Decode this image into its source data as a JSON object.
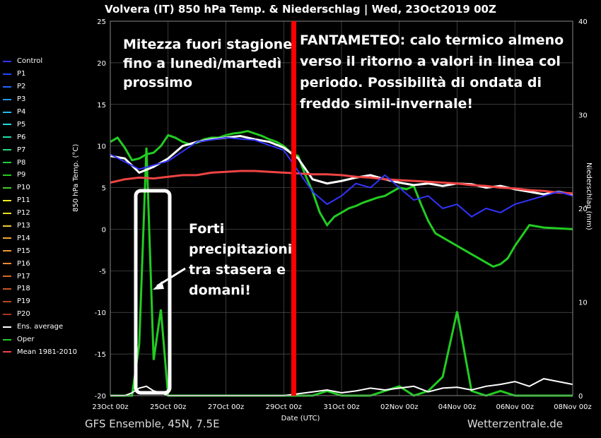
{
  "header": {
    "title": "Volvera  (IT)  850 hPa Temp. & Niederschlag | Wed, 23Oct2019 00Z"
  },
  "footer": {
    "left": "GFS Ensemble, 45N, 7.5E",
    "right": "Wetterzentrale.de"
  },
  "annotations": {
    "left_box": "Mitezza fuori stagione fino a lunedì/martedì prossimo",
    "right_box": "FANTAMETEO: calo termico almeno verso il ritorno a valori in linea col periodo. Possibilità di ondata di freddo simil-invernale!",
    "precip_box": "Forti precipitazioni tra stasera e domani!"
  },
  "colors": {
    "oper": "#22cc22",
    "ens_average": "#ffffff",
    "mean_1981_2010": "#ee4444",
    "control": "#3333ff",
    "marker_line": "#ff0000",
    "grid": "#555555"
  },
  "legend": [
    {
      "label": "Control",
      "color": "#3333ff"
    },
    {
      "label": "P1",
      "color": "#2244ff"
    },
    {
      "label": "P2",
      "color": "#2266ff"
    },
    {
      "label": "P3",
      "color": "#2299ee"
    },
    {
      "label": "P4",
      "color": "#22bbee"
    },
    {
      "label": "P5",
      "color": "#22dddd"
    },
    {
      "label": "P6",
      "color": "#22ddaa"
    },
    {
      "label": "P7",
      "color": "#22dd77"
    },
    {
      "label": "P8",
      "color": "#22cc44"
    },
    {
      "label": "P9",
      "color": "#22cc22"
    },
    {
      "label": "P10",
      "color": "#44cc22"
    },
    {
      "label": "P11",
      "color": "#eeee22"
    },
    {
      "label": "P12",
      "color": "#eedd22"
    },
    {
      "label": "P13",
      "color": "#eecc33"
    },
    {
      "label": "P14",
      "color": "#eeaa33"
    },
    {
      "label": "P15",
      "color": "#ee9933"
    },
    {
      "label": "P16",
      "color": "#ee8833"
    },
    {
      "label": "P17",
      "color": "#dd6622"
    },
    {
      "label": "P18",
      "color": "#cc5522"
    },
    {
      "label": "P19",
      "color": "#bb4422"
    },
    {
      "label": "P20",
      "color": "#aa3322"
    },
    {
      "label": "Ens. average",
      "color": "#ffffff"
    },
    {
      "label": "Oper",
      "color": "#22cc22"
    },
    {
      "label": "Mean 1981-2010",
      "color": "#ee4444"
    }
  ],
  "chart_data": {
    "type": "line",
    "title": "Volvera  (IT)  850 hPa Temp. & Niederschlag | Wed, 23Oct2019 00Z",
    "xlabel": "Date (UTC)",
    "ylabel": "850 hPa Temp. (°C)",
    "y2label": "Niederschlag (mm)",
    "ylim": [
      -20,
      25
    ],
    "y2lim": [
      0,
      40
    ],
    "x_tick_labels": [
      "23Oct 00z",
      "25Oct 00z",
      "27Oct 00z",
      "29Oct 00z",
      "31Oct 00z",
      "02Nov 00z",
      "04Nov 00z",
      "06Nov 00z",
      "08Nov 00z"
    ],
    "y_ticks": [
      25,
      20,
      15,
      10,
      5,
      0,
      -5,
      -10,
      -15,
      -20
    ],
    "y2_ticks": [
      40,
      30,
      20,
      10,
      0
    ],
    "marker_x_days": 6.0,
    "grid": true,
    "temperature_series": [
      {
        "name": "Oper",
        "x_days": [
          0,
          0.25,
          0.5,
          0.75,
          1,
          1.25,
          1.5,
          1.75,
          2,
          2.25,
          2.5,
          2.75,
          3,
          3.25,
          3.5,
          3.75,
          4,
          4.25,
          4.5,
          4.75,
          5,
          5.25,
          5.5,
          5.75,
          6,
          6.25,
          6.5,
          6.75,
          7,
          7.25,
          7.5,
          7.75,
          8,
          8.25,
          8.5,
          8.75,
          9,
          9.25,
          9.5,
          9.75,
          10,
          10.25,
          10.5,
          10.75,
          11,
          11.25,
          11.5,
          11.75,
          12,
          12.25,
          12.5,
          12.75,
          13,
          13.25,
          13.5,
          13.75,
          14,
          14.5,
          15,
          15.5,
          16
        ],
        "values": [
          10.5,
          11,
          9.8,
          8.3,
          8.5,
          9,
          9.2,
          10,
          11.3,
          11,
          10.5,
          10.2,
          10.4,
          10.8,
          11,
          11,
          11.3,
          11.5,
          11.6,
          11.8,
          11.5,
          11.2,
          10.8,
          10.5,
          10.0,
          9.2,
          8.8,
          6.5,
          4.5,
          2.0,
          0.5,
          1.5,
          2.0,
          2.5,
          2.8,
          3.2,
          3.5,
          3.8,
          4.0,
          4.5,
          5.0,
          4.8,
          5.2,
          3.0,
          1.0,
          -0.5,
          -1.0,
          -1.5,
          -2.0,
          -2.5,
          -3.0,
          -3.5,
          -4.0,
          -4.5,
          -4.2,
          -3.5,
          -2.0,
          0.5,
          0.2,
          0.1,
          0.0
        ]
      },
      {
        "name": "Ens. average",
        "x_days": [
          0,
          0.5,
          1,
          1.5,
          2,
          2.5,
          3,
          3.5,
          4,
          4.5,
          5,
          5.5,
          6,
          6.5,
          7,
          7.5,
          8,
          8.5,
          9,
          9.5,
          10,
          10.5,
          11,
          11.5,
          12,
          12.5,
          13,
          13.5,
          14,
          14.5,
          15,
          15.5,
          16
        ],
        "values": [
          8.8,
          8.5,
          6.8,
          7.5,
          8.5,
          10.0,
          10.5,
          10.8,
          11.0,
          11.2,
          10.8,
          10.5,
          9.8,
          8.5,
          6.0,
          5.5,
          5.8,
          6.2,
          6.5,
          6.0,
          5.6,
          5.3,
          5.5,
          5.2,
          5.5,
          5.4,
          5.0,
          5.2,
          4.8,
          4.5,
          4.2,
          4.5,
          4.2
        ]
      },
      {
        "name": "Mean 1981-2010",
        "x_days": [
          0,
          0.5,
          1,
          1.5,
          2,
          2.5,
          3,
          3.5,
          4,
          4.5,
          5,
          5.5,
          6,
          6.5,
          7,
          7.5,
          8,
          8.5,
          9,
          9.5,
          10,
          10.5,
          11,
          11.5,
          12,
          12.5,
          13,
          13.5,
          14,
          14.5,
          15,
          15.5,
          16
        ],
        "values": [
          5.6,
          6.0,
          6.2,
          6.1,
          6.3,
          6.5,
          6.5,
          6.8,
          6.9,
          7.0,
          7.0,
          6.9,
          6.8,
          6.7,
          6.6,
          6.6,
          6.5,
          6.3,
          6.2,
          6.0,
          5.9,
          5.8,
          5.7,
          5.6,
          5.5,
          5.3,
          5.2,
          5.0,
          4.9,
          4.7,
          4.6,
          4.4,
          4.3
        ]
      },
      {
        "name": "Control",
        "x_days": [
          0,
          1,
          2,
          3,
          4,
          5,
          6,
          6.5,
          7,
          7.5,
          8,
          8.5,
          9,
          9.5,
          10,
          10.5,
          11,
          11.5,
          12,
          12.5,
          13,
          13.5,
          14,
          14.5,
          15,
          15.5,
          16
        ],
        "values": [
          9.0,
          7.2,
          8.2,
          10.5,
          11.0,
          10.7,
          9.5,
          7.0,
          4.5,
          3.0,
          4.0,
          5.5,
          5.0,
          6.5,
          5.0,
          3.5,
          4.0,
          2.5,
          3.0,
          1.5,
          2.5,
          2.0,
          3.0,
          3.5,
          4.0,
          4.5,
          4.0
        ]
      }
    ],
    "precipitation_series": [
      {
        "name": "Oper",
        "x_days": [
          0,
          0.5,
          0.75,
          1,
          1.25,
          1.5,
          1.75,
          2,
          3,
          4,
          5,
          6,
          7,
          7.5,
          8,
          8.5,
          9,
          9.5,
          10,
          10.5,
          11,
          11.5,
          12,
          12.5,
          13,
          13.5,
          14,
          14.5,
          15,
          15.5,
          16
        ],
        "values": [
          0,
          0,
          0,
          5.5,
          26.5,
          3.8,
          9.2,
          0,
          0,
          0,
          0,
          0,
          0,
          0.5,
          0,
          0,
          0,
          0.5,
          1.0,
          0,
          0.5,
          2.0,
          9.0,
          0.5,
          0,
          0.5,
          0,
          0,
          0,
          0,
          0
        ]
      },
      {
        "name": "Ens. average",
        "x_days": [
          0,
          0.5,
          0.75,
          1,
          1.25,
          1.5,
          1.75,
          2,
          3,
          4,
          5,
          6,
          6.5,
          7,
          7.5,
          8,
          8.5,
          9,
          9.5,
          10,
          10.5,
          11,
          11.5,
          12,
          12.5,
          13,
          13.5,
          14,
          14.5,
          15,
          15.5,
          16
        ],
        "values": [
          0,
          0,
          0.3,
          0.8,
          1.0,
          0.5,
          0.3,
          0,
          0,
          0,
          0,
          0,
          0.2,
          0.4,
          0.6,
          0.3,
          0.5,
          0.8,
          0.6,
          0.8,
          1.0,
          0.4,
          0.8,
          0.9,
          0.6,
          1.0,
          1.2,
          1.5,
          1.0,
          1.8,
          1.5,
          1.2
        ]
      }
    ]
  }
}
